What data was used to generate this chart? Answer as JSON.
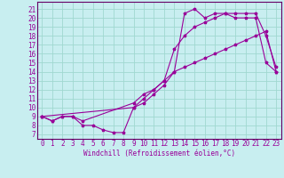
{
  "xlabel": "Windchill (Refroidissement éolien,°C)",
  "bg_color": "#c8eef0",
  "grid_color": "#a0d8d0",
  "line_color": "#990099",
  "spine_color": "#660066",
  "xlim": [
    -0.5,
    23.5
  ],
  "ylim": [
    6.5,
    21.8
  ],
  "xticks": [
    0,
    1,
    2,
    3,
    4,
    5,
    6,
    7,
    8,
    9,
    10,
    11,
    12,
    13,
    14,
    15,
    16,
    17,
    18,
    19,
    20,
    21,
    22,
    23
  ],
  "yticks": [
    7,
    8,
    9,
    10,
    11,
    12,
    13,
    14,
    15,
    16,
    17,
    18,
    19,
    20,
    21
  ],
  "line1_x": [
    0,
    1,
    2,
    3,
    4,
    5,
    6,
    7,
    8,
    9,
    10,
    11,
    12,
    13,
    14,
    15,
    16,
    17,
    18,
    19,
    20,
    21,
    22,
    23
  ],
  "line1_y": [
    9.0,
    8.5,
    9.0,
    9.0,
    8.0,
    8.0,
    7.5,
    7.2,
    7.2,
    10.0,
    10.5,
    11.5,
    12.5,
    14.0,
    14.5,
    15.0,
    15.5,
    16.0,
    16.5,
    17.0,
    17.5,
    18.0,
    18.5,
    14.0
  ],
  "line2_x": [
    0,
    1,
    2,
    3,
    4,
    9,
    10,
    11,
    12,
    13,
    14,
    15,
    16,
    17,
    18,
    19,
    20,
    21,
    22,
    23
  ],
  "line2_y": [
    9.0,
    8.5,
    9.0,
    9.0,
    8.5,
    10.5,
    11.5,
    12.0,
    13.0,
    14.0,
    20.5,
    21.0,
    20.0,
    20.5,
    20.5,
    20.0,
    20.0,
    20.0,
    15.0,
    14.0
  ],
  "line3_x": [
    0,
    9,
    10,
    11,
    12,
    13,
    14,
    15,
    16,
    17,
    18,
    19,
    20,
    21,
    22,
    23
  ],
  "line3_y": [
    9.0,
    10.0,
    11.0,
    12.0,
    13.0,
    16.5,
    18.0,
    19.0,
    19.5,
    20.0,
    20.5,
    20.5,
    20.5,
    20.5,
    18.0,
    14.5
  ],
  "tick_fontsize": 5.5,
  "xlabel_fontsize": 5.5
}
